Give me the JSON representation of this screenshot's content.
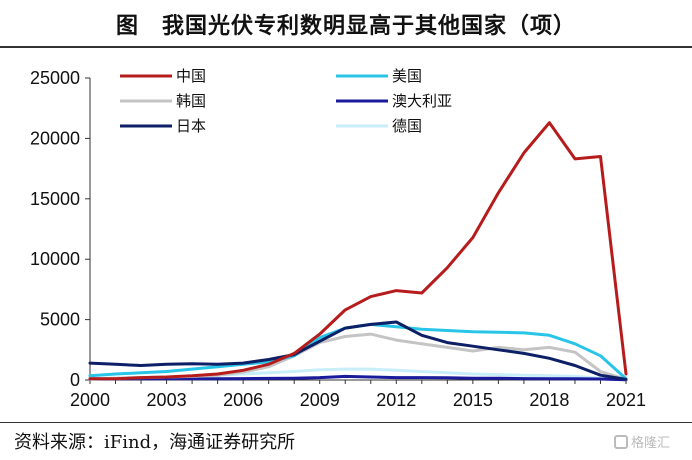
{
  "header": {
    "title": "图　我国光伏专利数明显高于其他国家（项）"
  },
  "footer": {
    "source": "资料来源：iFind，海通证券研究所",
    "watermark": "格隆汇"
  },
  "chart_data": {
    "type": "line",
    "title": "图　我国光伏专利数明显高于其他国家（项）",
    "xlabel": "",
    "ylabel": "",
    "x": [
      2000,
      2001,
      2002,
      2003,
      2004,
      2005,
      2006,
      2007,
      2008,
      2009,
      2010,
      2011,
      2012,
      2013,
      2014,
      2015,
      2016,
      2017,
      2018,
      2019,
      2020,
      2021
    ],
    "xticks": [
      "2000",
      "2003",
      "2006",
      "2009",
      "2012",
      "2015",
      "2018",
      "2021"
    ],
    "yticks": [
      "0",
      "5000",
      "10000",
      "15000",
      "20000",
      "25000"
    ],
    "xlim": [
      2000,
      2021
    ],
    "ylim": [
      0,
      25000
    ],
    "grid": false,
    "legend_position": "top",
    "series": [
      {
        "name": "中国",
        "color": "#b71c1c",
        "width": 3,
        "values": [
          100,
          100,
          200,
          250,
          350,
          500,
          800,
          1300,
          2200,
          3800,
          5800,
          6900,
          7400,
          7200,
          9300,
          11800,
          15500,
          18800,
          21300,
          18300,
          18500,
          500
        ]
      },
      {
        "name": "美国",
        "color": "#29c5e8",
        "width": 3,
        "values": [
          350,
          500,
          600,
          700,
          900,
          1100,
          1300,
          1500,
          2000,
          3500,
          4300,
          4600,
          4400,
          4200,
          4100,
          4000,
          3950,
          3900,
          3700,
          3000,
          2000,
          100
        ]
      },
      {
        "name": "韩国",
        "color": "#c4c4c4",
        "width": 3,
        "values": [
          100,
          150,
          200,
          250,
          300,
          400,
          650,
          1100,
          2000,
          3100,
          3600,
          3800,
          3300,
          3000,
          2700,
          2400,
          2700,
          2500,
          2700,
          2300,
          700,
          50
        ]
      },
      {
        "name": "澳大利亚",
        "color": "#1a1a9c",
        "width": 3,
        "values": [
          100,
          100,
          100,
          100,
          100,
          100,
          120,
          130,
          150,
          200,
          300,
          250,
          200,
          200,
          180,
          150,
          150,
          120,
          100,
          100,
          80,
          20
        ]
      },
      {
        "name": "日本",
        "color": "#0d1f66",
        "width": 3,
        "values": [
          1400,
          1300,
          1200,
          1300,
          1350,
          1300,
          1400,
          1700,
          2100,
          3200,
          4300,
          4600,
          4800,
          3700,
          3100,
          2800,
          2500,
          2200,
          1800,
          1200,
          400,
          50
        ]
      },
      {
        "name": "德国",
        "color": "#c8eefa",
        "width": 3,
        "values": [
          100,
          150,
          200,
          250,
          300,
          400,
          500,
          600,
          700,
          850,
          900,
          900,
          800,
          700,
          600,
          500,
          450,
          400,
          350,
          300,
          150,
          30
        ]
      }
    ]
  }
}
